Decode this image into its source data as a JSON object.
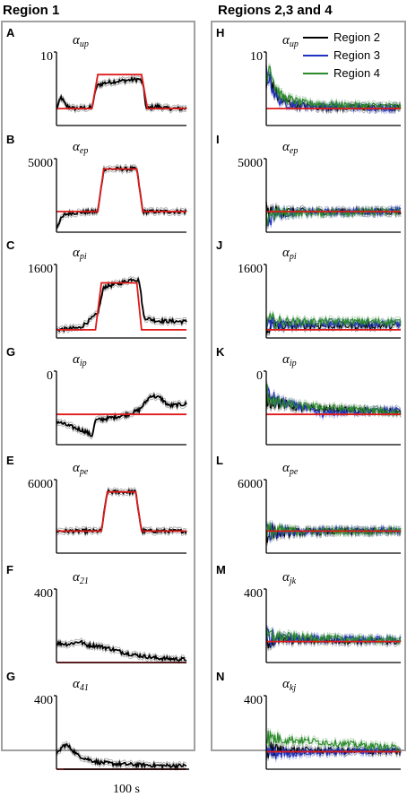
{
  "headers": {
    "left": "Region 1",
    "right": "Regions 2,3 and 4"
  },
  "legend": [
    {
      "name": "Region 2",
      "color": "#000000"
    },
    {
      "name": "Region 3",
      "color": "#2030c0"
    },
    {
      "name": "Region 4",
      "color": "#2a8a2a"
    }
  ],
  "colors": {
    "target": "#e01a1a",
    "region1": "#000000",
    "band": "#999999"
  },
  "scale_bar": {
    "label": "100 s",
    "length_s": 100
  },
  "chart_data": [
    {
      "type": "line",
      "letter": "A",
      "column": "left",
      "param": "α",
      "sub": "up",
      "ytick": "10",
      "ylim": [
        0,
        13
      ],
      "target": [
        [
          0,
          3
        ],
        [
          30,
          3
        ],
        [
          35,
          9
        ],
        [
          72,
          9
        ],
        [
          77,
          3
        ],
        [
          110,
          3
        ]
      ],
      "series": [
        {
          "color": "#000000",
          "values": [
            [
              0,
              3
            ],
            [
              4,
              5
            ],
            [
              8,
              3.5
            ],
            [
              15,
              3
            ],
            [
              30,
              3.2
            ],
            [
              34,
              7
            ],
            [
              40,
              7.5
            ],
            [
              50,
              7.8
            ],
            [
              60,
              8.0
            ],
            [
              70,
              8.2
            ],
            [
              73,
              7.5
            ],
            [
              76,
              3
            ],
            [
              85,
              3.4
            ],
            [
              95,
              3
            ],
            [
              110,
              3
            ]
          ]
        }
      ]
    },
    {
      "type": "line",
      "letter": "B",
      "column": "left",
      "param": "α",
      "sub": "ep",
      "ytick": "5000",
      "ylim": [
        0,
        5000
      ],
      "target": [
        [
          0,
          1400
        ],
        [
          35,
          1400
        ],
        [
          40,
          4300
        ],
        [
          68,
          4300
        ],
        [
          73,
          1400
        ],
        [
          110,
          1400
        ]
      ],
      "series": [
        {
          "color": "#000000",
          "values": [
            [
              0,
              300
            ],
            [
              3,
              800
            ],
            [
              7,
              1200
            ],
            [
              12,
              1300
            ],
            [
              20,
              1350
            ],
            [
              35,
              1400
            ],
            [
              40,
              4300
            ],
            [
              68,
              4300
            ],
            [
              73,
              1400
            ],
            [
              110,
              1400
            ]
          ]
        }
      ]
    },
    {
      "type": "line",
      "letter": "C",
      "column": "left",
      "param": "α",
      "sub": "pi",
      "ytick": "1600",
      "ylim": [
        0,
        1800
      ],
      "target": [
        [
          0,
          200
        ],
        [
          33,
          200
        ],
        [
          38,
          1350
        ],
        [
          68,
          1350
        ],
        [
          72,
          200
        ],
        [
          110,
          200
        ]
      ],
      "series": [
        {
          "color": "#000000",
          "values": [
            [
              0,
              200
            ],
            [
              20,
              250
            ],
            [
              35,
              600
            ],
            [
              40,
              1250
            ],
            [
              55,
              1350
            ],
            [
              65,
              1450
            ],
            [
              70,
              1400
            ],
            [
              74,
              500
            ],
            [
              85,
              420
            ],
            [
              110,
              400
            ]
          ]
        }
      ]
    },
    {
      "type": "line",
      "letter": "G",
      "column": "left",
      "param": "α",
      "sub": "ip",
      "ytick": "0",
      "ylim": [
        -600,
        250
      ],
      "target": [
        [
          0,
          -250
        ],
        [
          110,
          -250
        ]
      ],
      "series": [
        {
          "color": "#000000",
          "values": [
            [
              0,
              -330
            ],
            [
              10,
              -380
            ],
            [
              25,
              -450
            ],
            [
              30,
              -500
            ],
            [
              33,
              -320
            ],
            [
              50,
              -280
            ],
            [
              60,
              -250
            ],
            [
              70,
              -200
            ],
            [
              80,
              -30
            ],
            [
              88,
              -60
            ],
            [
              95,
              -150
            ],
            [
              110,
              -130
            ]
          ]
        }
      ]
    },
    {
      "type": "line",
      "letter": "E",
      "column": "left",
      "param": "α",
      "sub": "pe",
      "ytick": "6000",
      "ylim": [
        0,
        6000
      ],
      "target": [
        [
          0,
          1800
        ],
        [
          38,
          1800
        ],
        [
          43,
          5000
        ],
        [
          67,
          5000
        ],
        [
          72,
          1800
        ],
        [
          110,
          1800
        ]
      ],
      "series": [
        {
          "color": "#000000",
          "values": [
            [
              0,
              1800
            ],
            [
              38,
              1800
            ],
            [
              43,
              5000
            ],
            [
              67,
              5000
            ],
            [
              72,
              1800
            ],
            [
              110,
              1800
            ]
          ]
        }
      ]
    },
    {
      "type": "line",
      "letter": "F",
      "column": "left",
      "param": "α",
      "sub": "21",
      "ytick": "400",
      "ylim": [
        0,
        420
      ],
      "target": [
        [
          0,
          0
        ],
        [
          110,
          0
        ]
      ],
      "series": [
        {
          "color": "#000000",
          "values": [
            [
              0,
              110
            ],
            [
              10,
              105
            ],
            [
              20,
              120
            ],
            [
              25,
              100
            ],
            [
              35,
              95
            ],
            [
              45,
              80
            ],
            [
              55,
              60
            ],
            [
              65,
              45
            ],
            [
              75,
              35
            ],
            [
              85,
              25
            ],
            [
              100,
              20
            ],
            [
              110,
              18
            ]
          ]
        }
      ]
    },
    {
      "type": "line",
      "letter": "G",
      "column": "left",
      "param": "α",
      "sub": "41",
      "ytick": "400",
      "ylim": [
        0,
        420
      ],
      "target": [
        [
          0,
          0
        ],
        [
          110,
          0
        ]
      ],
      "series": [
        {
          "color": "#000000",
          "values": [
            [
              0,
              80
            ],
            [
              5,
              130
            ],
            [
              8,
              140
            ],
            [
              12,
              120
            ],
            [
              18,
              80
            ],
            [
              25,
              60
            ],
            [
              35,
              40
            ],
            [
              50,
              30
            ],
            [
              70,
              25
            ],
            [
              90,
              20
            ],
            [
              110,
              20
            ]
          ]
        }
      ]
    },
    {
      "type": "line",
      "letter": "H",
      "column": "right",
      "param": "α",
      "sub": "up",
      "ytick": "10",
      "ylim": [
        0,
        13
      ],
      "target": [
        [
          0,
          3
        ],
        [
          110,
          3
        ]
      ],
      "series": [
        {
          "name": "Region 2",
          "color": "#000000",
          "values": [
            [
              0,
              7
            ],
            [
              3,
              9
            ],
            [
              6,
              6
            ],
            [
              12,
              4.5
            ],
            [
              25,
              3.6
            ],
            [
              45,
              3.2
            ],
            [
              110,
              3.1
            ]
          ]
        },
        {
          "name": "Region 3",
          "color": "#2030c0",
          "values": [
            [
              0,
              10
            ],
            [
              3,
              8
            ],
            [
              8,
              5
            ],
            [
              15,
              4
            ],
            [
              30,
              3.5
            ],
            [
              60,
              3.3
            ],
            [
              110,
              3.1
            ]
          ]
        },
        {
          "name": "Region 4",
          "color": "#2a8a2a",
          "values": [
            [
              0,
              9
            ],
            [
              3,
              11
            ],
            [
              7,
              7
            ],
            [
              13,
              5
            ],
            [
              30,
              4
            ],
            [
              60,
              3.6
            ],
            [
              110,
              3.4
            ]
          ]
        }
      ]
    },
    {
      "type": "line",
      "letter": "I",
      "column": "right",
      "param": "α",
      "sub": "ep",
      "ytick": "5000",
      "ylim": [
        0,
        5000
      ],
      "target": [
        [
          0,
          1400
        ],
        [
          110,
          1400
        ]
      ],
      "series": [
        {
          "name": "Region 2",
          "color": "#000000",
          "values": [
            [
              0,
              1300
            ],
            [
              10,
              1400
            ],
            [
              110,
              1400
            ]
          ]
        },
        {
          "name": "Region 3",
          "color": "#2030c0",
          "values": [
            [
              0,
              700
            ],
            [
              3,
              900
            ],
            [
              6,
              1300
            ],
            [
              110,
              1450
            ]
          ]
        },
        {
          "name": "Region 4",
          "color": "#2a8a2a",
          "values": [
            [
              0,
              1000
            ],
            [
              3,
              1300
            ],
            [
              110,
              1400
            ]
          ]
        }
      ]
    },
    {
      "type": "line",
      "letter": "J",
      "column": "right",
      "param": "α",
      "sub": "pi",
      "ytick": "1600",
      "ylim": [
        0,
        1800
      ],
      "target": [
        [
          0,
          200
        ],
        [
          110,
          200
        ]
      ],
      "series": [
        {
          "name": "Region 2",
          "color": "#000000",
          "values": [
            [
              0,
              300
            ],
            [
              110,
              300
            ]
          ]
        },
        {
          "name": "Region 3",
          "color": "#2030c0",
          "values": [
            [
              0,
              350
            ],
            [
              110,
              350
            ]
          ]
        },
        {
          "name": "Region 4",
          "color": "#2a8a2a",
          "values": [
            [
              0,
              400
            ],
            [
              110,
              400
            ]
          ]
        }
      ]
    },
    {
      "type": "line",
      "letter": "K",
      "column": "right",
      "param": "α",
      "sub": "ip",
      "ytick": "0",
      "ylim": [
        -600,
        250
      ],
      "target": [
        [
          0,
          -250
        ],
        [
          110,
          -250
        ]
      ],
      "series": [
        {
          "name": "Region 2",
          "color": "#000000",
          "values": [
            [
              0,
              -50
            ],
            [
              10,
              -120
            ],
            [
              30,
              -180
            ],
            [
              60,
              -200
            ],
            [
              110,
              -220
            ]
          ]
        },
        {
          "name": "Region 3",
          "color": "#2030c0",
          "values": [
            [
              0,
              -30
            ],
            [
              10,
              -100
            ],
            [
              30,
              -170
            ],
            [
              45,
              -250
            ],
            [
              60,
              -220
            ],
            [
              110,
              -200
            ]
          ]
        },
        {
          "name": "Region 4",
          "color": "#2a8a2a",
          "values": [
            [
              0,
              0
            ],
            [
              10,
              -130
            ],
            [
              30,
              -150
            ],
            [
              60,
              -180
            ],
            [
              110,
              -230
            ]
          ]
        }
      ]
    },
    {
      "type": "line",
      "letter": "L",
      "column": "right",
      "param": "α",
      "sub": "pe",
      "ytick": "6000",
      "ylim": [
        0,
        6000
      ],
      "target": [
        [
          0,
          1800
        ],
        [
          110,
          1800
        ]
      ],
      "series": [
        {
          "name": "Region 2",
          "color": "#000000",
          "values": [
            [
              0,
              1700
            ],
            [
              110,
              1800
            ]
          ]
        },
        {
          "name": "Region 3",
          "color": "#2030c0",
          "values": [
            [
              0,
              1800
            ],
            [
              110,
              1850
            ]
          ]
        },
        {
          "name": "Region 4",
          "color": "#2a8a2a",
          "values": [
            [
              0,
              1200
            ],
            [
              2,
              1800
            ],
            [
              110,
              1800
            ]
          ]
        }
      ]
    },
    {
      "type": "line",
      "letter": "M",
      "column": "right",
      "param": "α",
      "sub": "jk",
      "ytick": "400",
      "ylim": [
        0,
        420
      ],
      "target": [
        [
          0,
          120
        ],
        [
          110,
          120
        ]
      ],
      "series": [
        {
          "name": "Region 2",
          "color": "#000000",
          "values": [
            [
              0,
              130
            ],
            [
              110,
              120
            ]
          ]
        },
        {
          "name": "Region 3",
          "color": "#2030c0",
          "values": [
            [
              0,
              140
            ],
            [
              110,
              130
            ]
          ]
        },
        {
          "name": "Region 4",
          "color": "#2a8a2a",
          "values": [
            [
              0,
              150
            ],
            [
              110,
              125
            ]
          ]
        }
      ]
    },
    {
      "type": "line",
      "letter": "N",
      "column": "right",
      "param": "α",
      "sub": "kj",
      "ytick": "400",
      "ylim": [
        0,
        420
      ],
      "target": [
        [
          0,
          100
        ],
        [
          110,
          100
        ]
      ],
      "series": [
        {
          "name": "Region 2",
          "color": "#000000",
          "values": [
            [
              0,
              110
            ],
            [
              110,
              100
            ]
          ]
        },
        {
          "name": "Region 3",
          "color": "#2030c0",
          "values": [
            [
              0,
              90
            ],
            [
              110,
              110
            ]
          ]
        },
        {
          "name": "Region 4",
          "color": "#2a8a2a",
          "values": [
            [
              0,
              180
            ],
            [
              110,
              120
            ]
          ]
        }
      ]
    }
  ]
}
